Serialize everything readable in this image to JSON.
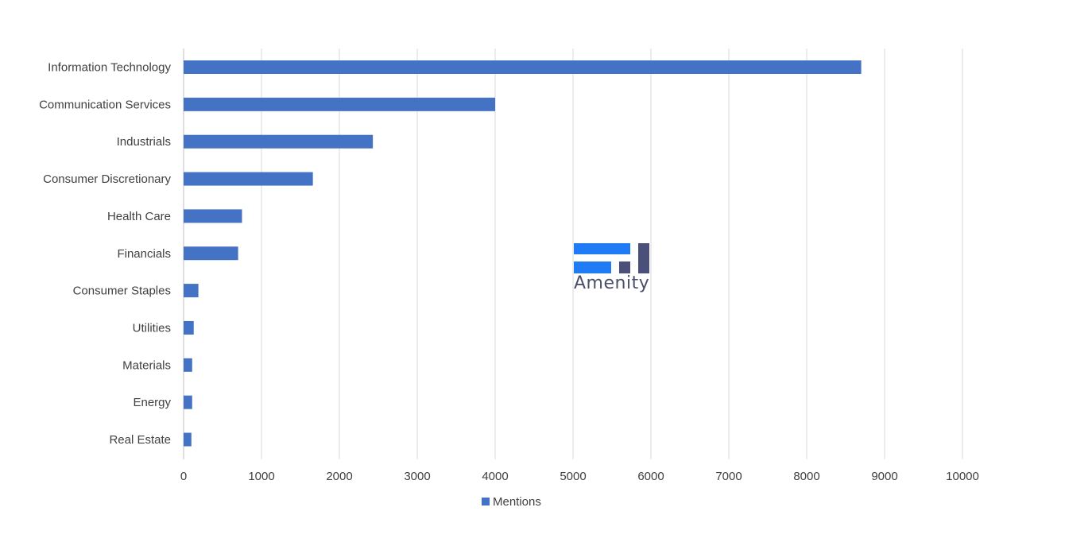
{
  "chart_data": {
    "type": "bar",
    "orientation": "horizontal",
    "categories": [
      "Information Technology",
      "Communication Services",
      "Industrials",
      "Consumer Discretionary",
      "Health Care",
      "Financials",
      "Consumer Staples",
      "Utilities",
      "Materials",
      "Energy",
      "Real Estate"
    ],
    "series": [
      {
        "name": "Mentions",
        "color": "#4472c4",
        "values": [
          8700,
          4000,
          2430,
          1660,
          750,
          700,
          190,
          130,
          110,
          110,
          100
        ]
      }
    ],
    "title": "",
    "xlabel": "",
    "ylabel": "",
    "xlim": [
      0,
      10000
    ],
    "xticks": [
      "0",
      "1000",
      "2000",
      "3000",
      "4000",
      "5000",
      "6000",
      "7000",
      "8000",
      "9000",
      "10000"
    ],
    "grid": "vertical",
    "legend_position": "bottom"
  },
  "watermark": {
    "text": "Amenity",
    "colors": {
      "bars": "#1f7cf5",
      "accent": "#4a5079"
    }
  }
}
